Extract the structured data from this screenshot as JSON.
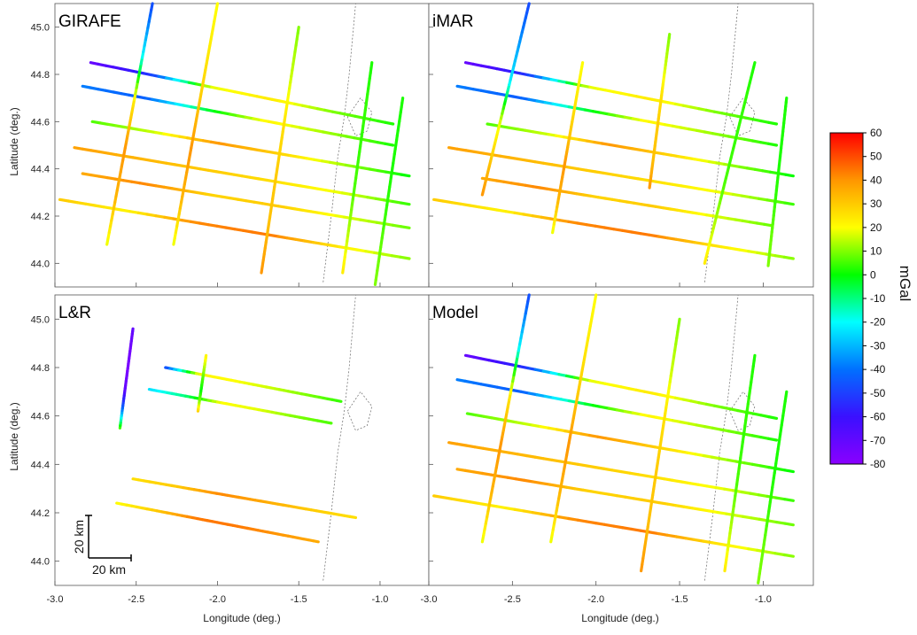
{
  "chart_data": {
    "type": "line",
    "xlim": [
      -3.0,
      -0.7
    ],
    "ylim": [
      43.9,
      45.1
    ],
    "xlabel": "Longitude (deg.)",
    "ylabel": "Latitude (deg.)",
    "x_ticks": [
      "-3.0",
      "-2.5",
      "-2.0",
      "-1.5",
      "-1.0"
    ],
    "y_ticks": [
      "44.0",
      "44.2",
      "44.4",
      "44.6",
      "44.8",
      "45.0"
    ],
    "colorbar": {
      "label": "mGal",
      "range": [
        -80,
        60
      ],
      "ticks": [
        "60",
        "50",
        "40",
        "30",
        "20",
        "10",
        "0",
        "-10",
        "-20",
        "-30",
        "-40",
        "-50",
        "-60",
        "-70",
        "-80"
      ]
    },
    "scale_bar": {
      "x_label": "20 km",
      "y_label": "20 km"
    },
    "panels": [
      {
        "title": "GIRAFE",
        "tracks": [
          {
            "from": [
              -2.78,
              44.85
            ],
            "to": [
              -0.92,
              44.59
            ],
            "values": [
              -72,
              -52,
              18,
              24,
              10,
              2
            ]
          },
          {
            "from": [
              -2.83,
              44.75
            ],
            "to": [
              -0.92,
              44.5
            ],
            "values": [
              -38,
              -44,
              -5,
              22,
              12,
              2
            ]
          },
          {
            "from": [
              -2.77,
              44.6
            ],
            "to": [
              -0.82,
              44.37
            ],
            "values": [
              6,
              16,
              40,
              28,
              12,
              0
            ]
          },
          {
            "from": [
              -2.88,
              44.49
            ],
            "to": [
              -0.82,
              44.25
            ],
            "values": [
              38,
              34,
              30,
              26,
              18,
              4
            ]
          },
          {
            "from": [
              -2.83,
              44.38
            ],
            "to": [
              -0.82,
              44.15
            ],
            "values": [
              36,
              42,
              28,
              30,
              18,
              8
            ]
          },
          {
            "from": [
              -2.97,
              44.27
            ],
            "to": [
              -0.82,
              44.02
            ],
            "values": [
              30,
              22,
              42,
              44,
              24,
              10
            ]
          },
          {
            "from": [
              -2.68,
              44.08
            ],
            "to": [
              -2.4,
              45.1
            ],
            "values": [
              18,
              34,
              40,
              24,
              -22,
              -48
            ]
          },
          {
            "from": [
              -2.27,
              44.08
            ],
            "to": [
              -2.0,
              45.1
            ],
            "values": [
              18,
              34,
              40,
              30,
              24,
              20
            ]
          },
          {
            "from": [
              -1.73,
              43.96
            ],
            "to": [
              -1.5,
              45.0
            ],
            "values": [
              40,
              32,
              30,
              26,
              16,
              10
            ]
          },
          {
            "from": [
              -1.23,
              43.96
            ],
            "to": [
              -1.05,
              44.85
            ],
            "values": [
              24,
              14,
              6,
              4,
              4,
              2
            ]
          },
          {
            "from": [
              -1.03,
              43.91
            ],
            "to": [
              -0.86,
              44.7
            ],
            "values": [
              10,
              8,
              4,
              2,
              2,
              2
            ]
          }
        ]
      },
      {
        "title": "iMAR",
        "tracks": [
          {
            "from": [
              -2.78,
              44.85
            ],
            "to": [
              -0.92,
              44.59
            ],
            "values": [
              -72,
              -52,
              18,
              24,
              10,
              2
            ]
          },
          {
            "from": [
              -2.83,
              44.75
            ],
            "to": [
              -0.92,
              44.5
            ],
            "values": [
              -38,
              -44,
              -5,
              22,
              12,
              2
            ]
          },
          {
            "from": [
              -2.65,
              44.59
            ],
            "to": [
              -0.82,
              44.37
            ],
            "values": [
              6,
              16,
              40,
              28,
              12,
              0
            ]
          },
          {
            "from": [
              -2.88,
              44.49
            ],
            "to": [
              -0.82,
              44.25
            ],
            "values": [
              38,
              34,
              30,
              26,
              18,
              4
            ]
          },
          {
            "from": [
              -2.68,
              44.36
            ],
            "to": [
              -0.95,
              44.16
            ],
            "values": [
              36,
              42,
              28,
              30,
              18,
              8
            ]
          },
          {
            "from": [
              -2.97,
              44.27
            ],
            "to": [
              -0.82,
              44.02
            ],
            "values": [
              30,
              22,
              42,
              44,
              24,
              10
            ]
          },
          {
            "from": [
              -2.68,
              44.29
            ],
            "to": [
              -2.4,
              45.1
            ],
            "values": [
              40,
              30,
              16,
              -22,
              -34,
              -48
            ]
          },
          {
            "from": [
              -2.26,
              44.13
            ],
            "to": [
              -2.08,
              44.85
            ],
            "values": [
              18,
              34,
              40,
              30,
              24,
              20
            ]
          },
          {
            "from": [
              -1.68,
              44.32
            ],
            "to": [
              -1.56,
              44.97
            ],
            "values": [
              40,
              32,
              30,
              26,
              16,
              10
            ]
          },
          {
            "from": [
              -1.35,
              44.0
            ],
            "to": [
              -1.05,
              44.85
            ],
            "values": [
              24,
              14,
              6,
              4,
              4,
              2
            ]
          },
          {
            "from": [
              -0.97,
              43.99
            ],
            "to": [
              -0.86,
              44.7
            ],
            "values": [
              10,
              8,
              4,
              2,
              2,
              2
            ]
          }
        ]
      },
      {
        "title": "L&R",
        "tracks": [
          {
            "from": [
              -2.6,
              44.55
            ],
            "to": [
              -2.52,
              44.96
            ],
            "values": [
              8,
              -40,
              -70,
              -76,
              -74,
              -70
            ]
          },
          {
            "from": [
              -2.32,
              44.8
            ],
            "to": [
              -1.24,
              44.66
            ],
            "values": [
              -50,
              22,
              20,
              16,
              10,
              4
            ]
          },
          {
            "from": [
              -2.42,
              44.71
            ],
            "to": [
              -1.3,
              44.57
            ],
            "values": [
              -25,
              -10,
              20,
              18,
              10,
              6
            ]
          },
          {
            "from": [
              -2.12,
              44.62
            ],
            "to": [
              -2.07,
              44.85
            ],
            "values": [
              30,
              10,
              0,
              6,
              14,
              22
            ]
          },
          {
            "from": [
              -2.52,
              44.34
            ],
            "to": [
              -1.15,
              44.18
            ],
            "values": [
              26,
              30,
              42,
              36,
              30,
              26
            ]
          },
          {
            "from": [
              -2.62,
              44.24
            ],
            "to": [
              -1.38,
              44.08
            ],
            "values": [
              20,
              30,
              44,
              44,
              40,
              36
            ]
          }
        ]
      },
      {
        "title": "Model",
        "tracks": [
          {
            "from": [
              -2.78,
              44.85
            ],
            "to": [
              -0.92,
              44.59
            ],
            "values": [
              -72,
              -52,
              18,
              24,
              10,
              2
            ]
          },
          {
            "from": [
              -2.83,
              44.75
            ],
            "to": [
              -0.92,
              44.5
            ],
            "values": [
              -38,
              -44,
              -5,
              22,
              12,
              2
            ]
          },
          {
            "from": [
              -2.77,
              44.61
            ],
            "to": [
              -0.82,
              44.37
            ],
            "values": [
              6,
              16,
              40,
              28,
              12,
              0
            ]
          },
          {
            "from": [
              -2.88,
              44.49
            ],
            "to": [
              -0.82,
              44.25
            ],
            "values": [
              38,
              34,
              30,
              26,
              18,
              4
            ]
          },
          {
            "from": [
              -2.83,
              44.38
            ],
            "to": [
              -0.82,
              44.15
            ],
            "values": [
              36,
              42,
              28,
              30,
              18,
              8
            ]
          },
          {
            "from": [
              -2.97,
              44.27
            ],
            "to": [
              -0.82,
              44.02
            ],
            "values": [
              30,
              22,
              42,
              44,
              24,
              10
            ]
          },
          {
            "from": [
              -2.68,
              44.08
            ],
            "to": [
              -2.4,
              45.1
            ],
            "values": [
              18,
              34,
              40,
              24,
              -22,
              -48
            ]
          },
          {
            "from": [
              -2.27,
              44.08
            ],
            "to": [
              -2.0,
              45.1
            ],
            "values": [
              18,
              34,
              40,
              30,
              24,
              20
            ]
          },
          {
            "from": [
              -1.73,
              43.96
            ],
            "to": [
              -1.5,
              45.0
            ],
            "values": [
              40,
              32,
              30,
              26,
              16,
              10
            ]
          },
          {
            "from": [
              -1.23,
              43.96
            ],
            "to": [
              -1.05,
              44.85
            ],
            "values": [
              24,
              14,
              6,
              4,
              4,
              2
            ]
          },
          {
            "from": [
              -1.03,
              43.91
            ],
            "to": [
              -0.86,
              44.7
            ],
            "values": [
              10,
              8,
              4,
              2,
              2,
              2
            ]
          }
        ]
      }
    ]
  }
}
